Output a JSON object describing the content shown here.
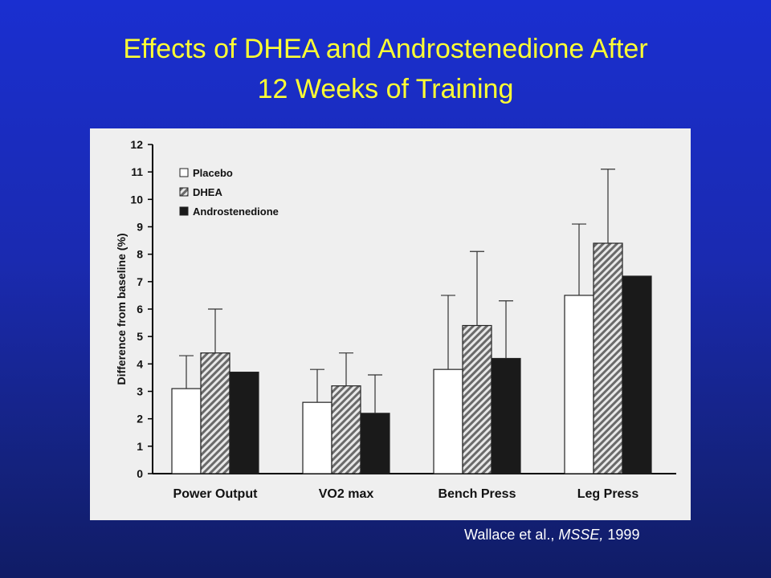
{
  "slide": {
    "title_line1": "Effects of DHEA and Androstenedione After",
    "title_line2": "12 Weeks of Training",
    "citation_authors": "Wallace et al., ",
    "citation_journal": "MSSE,",
    "citation_year": " 1999"
  },
  "colors": {
    "background": "#1a2ab0",
    "title": "#ffff33",
    "placebo": "#ffffff",
    "dhea": "#9a9a9a",
    "androstenedione": "#1a1a1a"
  },
  "chart_data": {
    "type": "bar",
    "title": "",
    "xlabel": "",
    "ylabel": "Difference from baseline (%)",
    "ylim": [
      0,
      12
    ],
    "yticks": [
      "0",
      "1",
      "2",
      "3",
      "4",
      "5",
      "6",
      "7",
      "8",
      "9",
      "10",
      "11",
      "12"
    ],
    "categories": [
      "Power Output",
      "VO2 max",
      "Bench Press",
      "Leg Press"
    ],
    "legend_position": "top-left",
    "series": [
      {
        "name": "Placebo",
        "pattern": "solid-white",
        "values": [
          3.1,
          2.6,
          3.8,
          6.5
        ],
        "error": [
          1.2,
          1.2,
          2.7,
          2.6
        ]
      },
      {
        "name": "DHEA",
        "pattern": "hatched",
        "values": [
          4.4,
          3.2,
          5.4,
          8.4
        ],
        "error": [
          1.6,
          1.2,
          2.7,
          2.7
        ]
      },
      {
        "name": "Androstenedione",
        "pattern": "solid-black",
        "values": [
          3.7,
          2.2,
          4.2,
          7.2
        ],
        "error": [
          0,
          1.4,
          2.1,
          0
        ]
      }
    ]
  }
}
